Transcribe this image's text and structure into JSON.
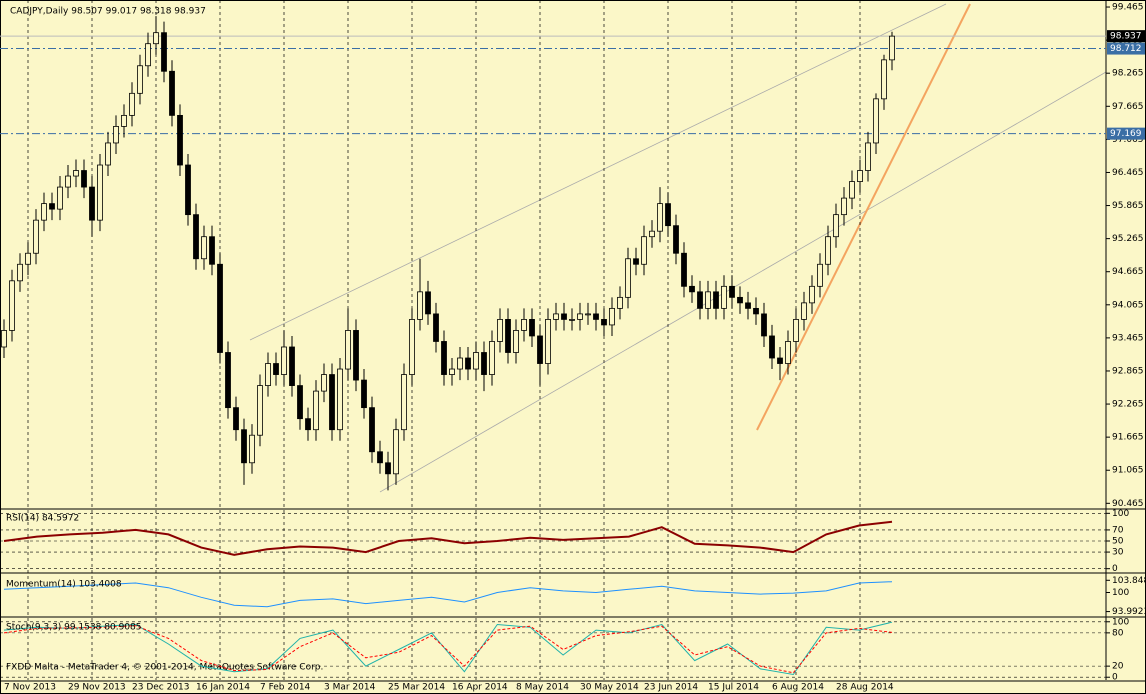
{
  "chart_data": {
    "type": "candlestick",
    "title": "CADJPY,Daily  98.507 99.017 98.318 98.937",
    "watermark": "FXDD Malta - MetaTrader 4, © 2001-2014, MetaQuotes Software Corp.",
    "categories": [
      null,
      null,
      null,
      "7 Nov 2013",
      null,
      null,
      null,
      null,
      null,
      null,
      null,
      "29 Nov 2013",
      null,
      null,
      null,
      null,
      null,
      null,
      null,
      "23 Dec 2013",
      null,
      null,
      null,
      null,
      null,
      null,
      null,
      "16 Jan 2014",
      null,
      null,
      null,
      null,
      null,
      null,
      null,
      "7 Feb 2014",
      null,
      null,
      null,
      null,
      null,
      null,
      null,
      "3 Mar 2014",
      null,
      null,
      null,
      null,
      null,
      null,
      null,
      "25 Mar 2014",
      null,
      null,
      null,
      null,
      null,
      null,
      null,
      "16 Apr 2014",
      null,
      null,
      null,
      null,
      null,
      null,
      null,
      "8 May 2014",
      null,
      null,
      null,
      null,
      null,
      null,
      null,
      "30 May 2014",
      null,
      null,
      null,
      null,
      null,
      null,
      null,
      "23 Jun 2014",
      null,
      null,
      null,
      null,
      null,
      null,
      null,
      "15 Jul 2014",
      null,
      null,
      null,
      null,
      null,
      null,
      null,
      "6 Aug 2014",
      null,
      null,
      null,
      null,
      null,
      null,
      null,
      "28 Aug 2014",
      null,
      null,
      null,
      null
    ],
    "candles": [
      [
        93.3,
        93.8,
        93.1,
        93.6
      ],
      [
        93.6,
        94.7,
        93.4,
        94.5
      ],
      [
        94.5,
        95.0,
        94.3,
        94.8
      ],
      [
        94.8,
        95.2,
        94.6,
        95.0
      ],
      [
        95.0,
        95.8,
        94.8,
        95.6
      ],
      [
        95.6,
        96.1,
        95.4,
        95.9
      ],
      [
        95.9,
        96.1,
        95.6,
        95.8
      ],
      [
        95.8,
        96.4,
        95.6,
        96.2
      ],
      [
        96.2,
        96.6,
        96.0,
        96.4
      ],
      [
        96.4,
        96.7,
        96.2,
        96.5
      ],
      [
        96.5,
        96.7,
        96.0,
        96.2
      ],
      [
        96.2,
        96.4,
        95.3,
        95.6
      ],
      [
        95.6,
        96.8,
        95.4,
        96.6
      ],
      [
        96.6,
        97.2,
        96.4,
        97.0
      ],
      [
        97.0,
        97.5,
        96.8,
        97.3
      ],
      [
        97.3,
        97.7,
        97.1,
        97.5
      ],
      [
        97.5,
        98.1,
        97.3,
        97.9
      ],
      [
        97.9,
        98.6,
        97.7,
        98.4
      ],
      [
        98.4,
        99.0,
        98.2,
        98.8
      ],
      [
        98.8,
        99.3,
        98.6,
        99.0
      ],
      [
        99.0,
        99.2,
        98.1,
        98.3
      ],
      [
        98.3,
        98.5,
        97.3,
        97.5
      ],
      [
        97.5,
        97.7,
        96.4,
        96.6
      ],
      [
        96.6,
        96.8,
        95.5,
        95.7
      ],
      [
        95.7,
        95.9,
        94.7,
        94.9
      ],
      [
        94.9,
        95.5,
        94.7,
        95.3
      ],
      [
        95.3,
        95.5,
        94.6,
        94.8
      ],
      [
        94.8,
        95.0,
        93.0,
        93.2
      ],
      [
        93.2,
        93.4,
        92.0,
        92.2
      ],
      [
        92.2,
        92.4,
        91.6,
        91.8
      ],
      [
        91.8,
        92.0,
        90.8,
        91.2
      ],
      [
        91.2,
        91.9,
        91.0,
        91.7
      ],
      [
        91.7,
        92.8,
        91.5,
        92.6
      ],
      [
        92.6,
        93.2,
        92.4,
        93.0
      ],
      [
        93.0,
        93.2,
        92.6,
        92.8
      ],
      [
        92.8,
        93.6,
        92.6,
        93.3
      ],
      [
        93.3,
        93.5,
        92.4,
        92.6
      ],
      [
        92.6,
        92.8,
        91.8,
        92.0
      ],
      [
        92.0,
        92.2,
        91.6,
        91.8
      ],
      [
        91.8,
        92.7,
        91.6,
        92.5
      ],
      [
        92.5,
        93.0,
        92.3,
        92.8
      ],
      [
        92.8,
        93.0,
        91.6,
        91.8
      ],
      [
        91.8,
        93.1,
        91.6,
        92.9
      ],
      [
        92.9,
        94.0,
        92.7,
        93.6
      ],
      [
        93.6,
        93.8,
        92.5,
        92.7
      ],
      [
        92.7,
        92.9,
        92.0,
        92.2
      ],
      [
        92.2,
        92.4,
        91.2,
        91.4
      ],
      [
        91.4,
        91.6,
        91.0,
        91.2
      ],
      [
        91.2,
        91.4,
        90.7,
        91.0
      ],
      [
        91.0,
        92.0,
        90.8,
        91.8
      ],
      [
        91.8,
        93.0,
        91.6,
        92.8
      ],
      [
        92.8,
        94.0,
        92.6,
        93.8
      ],
      [
        93.8,
        94.9,
        93.6,
        94.3
      ],
      [
        94.3,
        94.5,
        93.7,
        93.9
      ],
      [
        93.9,
        94.1,
        93.2,
        93.4
      ],
      [
        93.4,
        93.6,
        92.6,
        92.8
      ],
      [
        92.8,
        93.1,
        92.6,
        92.9
      ],
      [
        92.9,
        93.3,
        92.7,
        93.1
      ],
      [
        93.1,
        93.3,
        92.7,
        92.9
      ],
      [
        92.9,
        93.4,
        92.7,
        93.2
      ],
      [
        93.2,
        93.4,
        92.5,
        92.8
      ],
      [
        92.8,
        93.6,
        92.6,
        93.4
      ],
      [
        93.4,
        94.0,
        93.2,
        93.8
      ],
      [
        93.8,
        94.0,
        93.0,
        93.2
      ],
      [
        93.2,
        93.8,
        93.0,
        93.6
      ],
      [
        93.6,
        94.0,
        93.4,
        93.8
      ],
      [
        93.8,
        94.0,
        93.3,
        93.5
      ],
      [
        93.5,
        93.7,
        92.6,
        93.0
      ],
      [
        93.0,
        94.0,
        92.8,
        93.8
      ],
      [
        93.8,
        94.1,
        93.6,
        93.9
      ],
      [
        93.9,
        94.1,
        93.6,
        93.8
      ],
      [
        93.8,
        94.0,
        93.6,
        93.8
      ],
      [
        93.8,
        94.1,
        93.6,
        93.9
      ],
      [
        93.9,
        94.1,
        93.7,
        93.9
      ],
      [
        93.9,
        94.1,
        93.6,
        93.8
      ],
      [
        93.8,
        94.0,
        93.5,
        93.7
      ],
      [
        93.7,
        94.2,
        93.5,
        94.0
      ],
      [
        94.0,
        94.4,
        93.8,
        94.2
      ],
      [
        94.2,
        95.1,
        94.0,
        94.9
      ],
      [
        94.9,
        95.1,
        94.6,
        94.8
      ],
      [
        94.8,
        95.5,
        94.6,
        95.3
      ],
      [
        95.3,
        95.6,
        95.1,
        95.4
      ],
      [
        95.4,
        96.2,
        95.2,
        95.9
      ],
      [
        95.9,
        96.1,
        95.3,
        95.5
      ],
      [
        95.5,
        95.7,
        94.8,
        95.0
      ],
      [
        95.0,
        95.2,
        94.2,
        94.4
      ],
      [
        94.4,
        94.6,
        94.1,
        94.3
      ],
      [
        94.3,
        94.5,
        93.8,
        94.0
      ],
      [
        94.0,
        94.5,
        93.8,
        94.3
      ],
      [
        94.3,
        94.5,
        93.8,
        94.0
      ],
      [
        94.0,
        94.6,
        93.8,
        94.4
      ],
      [
        94.4,
        94.6,
        94.0,
        94.2
      ],
      [
        94.2,
        94.4,
        93.9,
        94.1
      ],
      [
        94.1,
        94.3,
        93.8,
        94.0
      ],
      [
        94.0,
        94.2,
        93.7,
        93.9
      ],
      [
        93.9,
        94.1,
        93.3,
        93.5
      ],
      [
        93.5,
        93.7,
        92.9,
        93.1
      ],
      [
        93.1,
        93.3,
        92.7,
        93.0
      ],
      [
        93.0,
        93.6,
        92.8,
        93.4
      ],
      [
        93.4,
        94.0,
        93.2,
        93.8
      ],
      [
        93.8,
        94.3,
        93.6,
        94.1
      ],
      [
        94.1,
        94.6,
        93.9,
        94.4
      ],
      [
        94.4,
        95.0,
        94.2,
        94.8
      ],
      [
        94.8,
        95.5,
        94.6,
        95.3
      ],
      [
        95.3,
        95.9,
        95.1,
        95.7
      ],
      [
        95.7,
        96.2,
        95.5,
        96.0
      ],
      [
        96.0,
        96.5,
        95.8,
        96.3
      ],
      [
        96.3,
        96.7,
        96.1,
        96.5
      ],
      [
        96.5,
        97.2,
        96.3,
        97.0
      ],
      [
        97.0,
        97.9,
        96.8,
        97.8
      ],
      [
        97.8,
        98.6,
        97.6,
        98.507
      ],
      [
        98.507,
        99.017,
        98.318,
        98.937
      ]
    ],
    "ylim": [
      90.38,
      99.52
    ],
    "yticks": [
      99.465,
      98.865,
      98.265,
      97.665,
      97.065,
      96.465,
      95.865,
      95.265,
      94.665,
      94.065,
      93.465,
      92.865,
      92.265,
      91.665,
      91.065,
      90.465
    ],
    "levels": [
      98.712,
      97.169
    ],
    "level_color": "#3a6ea5",
    "last_price": 98.937,
    "indicators": [
      {
        "title": "RSI(14) 84.5972",
        "ylim": [
          -6,
          106
        ],
        "yticks": [
          100,
          70,
          50,
          30,
          0
        ],
        "lines": [
          {
            "color": "#8b0000",
            "width": 2,
            "values": [
              50,
              58,
              62,
              65,
              70,
              62,
              38,
              25,
              35,
              40,
              38,
              30,
              50,
              55,
              46,
              50,
              56,
              52,
              55,
              58,
              75,
              45,
              42,
              38,
              30,
              62,
              78,
              84.5972
            ]
          }
        ]
      },
      {
        "title": "Momentum(14) 103.4008",
        "ylim": [
          92.6,
          105.2
        ],
        "yticks": [
          103.8488,
          100,
          93.9923
        ],
        "lines": [
          {
            "color": "#1e90ff",
            "width": 1,
            "values": [
              101,
              101.5,
              102,
              102.5,
              103,
              101.5,
              98.5,
              96,
              95.5,
              97.5,
              98,
              96.5,
              97.5,
              98.5,
              97,
              100,
              101.5,
              100.5,
              100,
              101,
              102,
              100.5,
              100,
              99.5,
              99.8,
              100.5,
              103,
              103.4008
            ]
          }
        ]
      },
      {
        "title": "Stoch(9,3,3) 99.1538 80.9085",
        "ylim": [
          -5,
          105
        ],
        "yticks": [
          100,
          80,
          20,
          0
        ],
        "lines": [
          {
            "color": "#20b2aa",
            "width": 1,
            "values": [
              85,
              90,
              88,
              92,
              95,
              60,
              20,
              10,
              15,
              70,
              85,
              20,
              50,
              80,
              10,
              95,
              90,
              40,
              85,
              80,
              95,
              30,
              60,
              15,
              5,
              90,
              85,
              99.1538
            ]
          },
          {
            "color": "#ff0000",
            "width": 1,
            "dash": true,
            "values": [
              80,
              88,
              89,
              90,
              93,
              70,
              30,
              12,
              14,
              55,
              80,
              35,
              45,
              75,
              20,
              85,
              92,
              50,
              75,
              82,
              92,
              40,
              55,
              20,
              8,
              80,
              88,
              80.9085
            ]
          }
        ]
      }
    ]
  }
}
